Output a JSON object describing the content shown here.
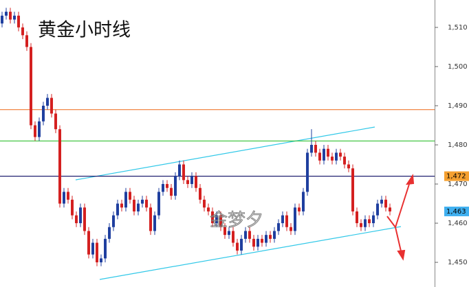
{
  "chart_data": {
    "type": "candlestick",
    "title": "黄金小时线",
    "watermark": "金梦夕",
    "up_color": "#1f3f9f",
    "down_color": "#d42020",
    "open": [
      1511,
      1513,
      1514,
      1512,
      1513,
      1510,
      1508,
      1505,
      1485,
      1482,
      1486,
      1490,
      1492,
      1488,
      1484,
      1465,
      1468,
      1466,
      1462,
      1460,
      1464,
      1458,
      1452,
      1455,
      1450,
      1451,
      1456,
      1459,
      1462,
      1465,
      1464,
      1468,
      1466,
      1463,
      1465,
      1466,
      1464,
      1458,
      1462,
      1468,
      1470,
      1469,
      1467,
      1472,
      1475,
      1471,
      1470,
      1472,
      1469,
      1466,
      1464,
      1463,
      1460,
      1462,
      1459,
      1457,
      1458,
      1455,
      1453,
      1456,
      1458,
      1456,
      1454,
      1456,
      1455,
      1457,
      1456,
      1458,
      1460,
      1462,
      1459,
      1458,
      1464,
      1463,
      1468,
      1478,
      1480,
      1478,
      1476,
      1479,
      1477,
      1476,
      1478,
      1477,
      1475,
      1474,
      1463,
      1460,
      1459,
      1461,
      1460,
      1462,
      1465,
      1466,
      1464
    ],
    "high": [
      1514,
      1515,
      1515,
      1514,
      1514,
      1511,
      1509,
      1506,
      1486,
      1487,
      1491,
      1493,
      1493,
      1489,
      1485,
      1469,
      1469,
      1467,
      1463,
      1465,
      1465,
      1459,
      1456,
      1456,
      1452,
      1457,
      1460,
      1463,
      1466,
      1466,
      1469,
      1469,
      1467,
      1466,
      1467,
      1467,
      1465,
      1463,
      1469,
      1471,
      1471,
      1470,
      1473,
      1476,
      1476,
      1472,
      1473,
      1473,
      1470,
      1467,
      1465,
      1464,
      1463,
      1463,
      1460,
      1459,
      1459,
      1456,
      1457,
      1459,
      1459,
      1457,
      1457,
      1457,
      1458,
      1458,
      1459,
      1461,
      1463,
      1463,
      1460,
      1465,
      1465,
      1469,
      1479,
      1484,
      1481,
      1479,
      1480,
      1480,
      1478,
      1479,
      1479,
      1478,
      1476,
      1475,
      1464,
      1461,
      1462,
      1462,
      1463,
      1466,
      1467,
      1467,
      1465
    ],
    "low": [
      1510,
      1512,
      1511,
      1511,
      1509,
      1507,
      1504,
      1484,
      1481,
      1481,
      1485,
      1489,
      1487,
      1483,
      1464,
      1464,
      1465,
      1461,
      1459,
      1459,
      1457,
      1451,
      1451,
      1449,
      1449,
      1450,
      1455,
      1458,
      1461,
      1463,
      1463,
      1465,
      1462,
      1462,
      1464,
      1463,
      1457,
      1457,
      1461,
      1467,
      1468,
      1466,
      1466,
      1471,
      1470,
      1469,
      1469,
      1468,
      1465,
      1463,
      1462,
      1459,
      1459,
      1458,
      1456,
      1456,
      1454,
      1452,
      1452,
      1455,
      1455,
      1453,
      1453,
      1454,
      1454,
      1455,
      1455,
      1457,
      1459,
      1458,
      1457,
      1457,
      1462,
      1462,
      1467,
      1477,
      1477,
      1475,
      1475,
      1476,
      1475,
      1475,
      1476,
      1474,
      1473,
      1462,
      1459,
      1458,
      1458,
      1459,
      1459,
      1461,
      1464,
      1463,
      1462
    ],
    "close": [
      1513,
      1514,
      1512,
      1513,
      1510,
      1508,
      1505,
      1485,
      1482,
      1486,
      1490,
      1492,
      1488,
      1484,
      1465,
      1468,
      1466,
      1462,
      1460,
      1464,
      1458,
      1452,
      1455,
      1450,
      1451,
      1456,
      1459,
      1462,
      1465,
      1464,
      1468,
      1466,
      1463,
      1465,
      1466,
      1464,
      1458,
      1462,
      1468,
      1470,
      1469,
      1467,
      1472,
      1475,
      1471,
      1470,
      1472,
      1469,
      1466,
      1464,
      1463,
      1460,
      1462,
      1459,
      1457,
      1458,
      1455,
      1453,
      1456,
      1458,
      1456,
      1454,
      1456,
      1455,
      1457,
      1456,
      1458,
      1460,
      1462,
      1459,
      1458,
      1464,
      1463,
      1468,
      1478,
      1480,
      1478,
      1476,
      1479,
      1477,
      1476,
      1478,
      1477,
      1475,
      1474,
      1463,
      1460,
      1459,
      1461,
      1460,
      1462,
      1465,
      1466,
      1464,
      1463
    ],
    "ylim": [
      1443.7,
      1517
    ],
    "yticks": [
      {
        "value": 1450,
        "label": "1,450"
      },
      {
        "value": 1460,
        "label": "1,460"
      },
      {
        "value": 1470,
        "label": "1,470"
      },
      {
        "value": 1480,
        "label": "1,480"
      },
      {
        "value": 1490,
        "label": "1,490"
      },
      {
        "value": 1500,
        "label": "1,500"
      },
      {
        "value": 1510,
        "label": "1,510"
      }
    ],
    "levels": [
      {
        "value": 1489,
        "color": "#f07830"
      },
      {
        "value": 1481,
        "color": "#30c030"
      },
      {
        "value": 1472,
        "color": "#202070",
        "label": "1,472",
        "tag_color": "#f5a030"
      }
    ],
    "last_price": {
      "value": 1463,
      "label": "1,463",
      "tag_color": "#40b0f0"
    }
  }
}
